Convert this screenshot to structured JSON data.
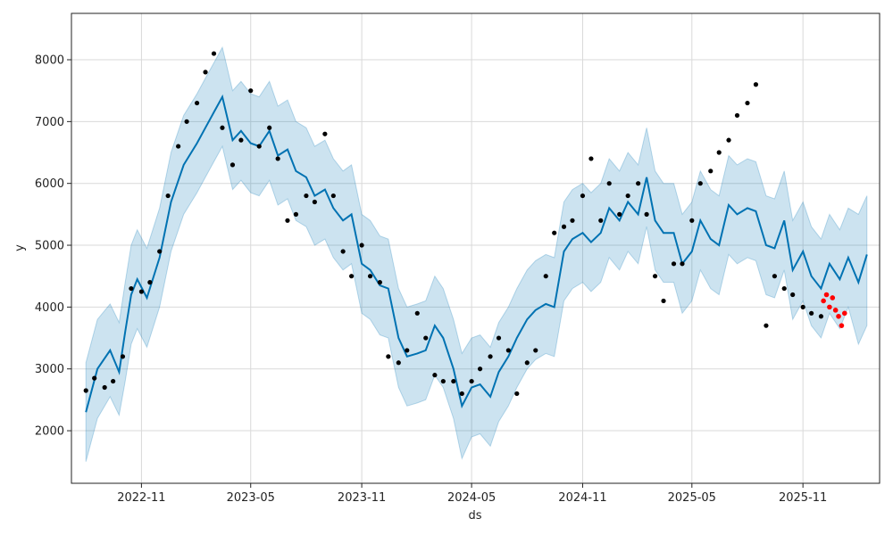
{
  "chart_data": {
    "type": "line",
    "title": "",
    "xlabel": "ds",
    "ylabel": "y",
    "x_range": [
      "2022-07-08",
      "2026-03-08"
    ],
    "ylim": [
      1150,
      8750
    ],
    "x_ticks": [
      {
        "date": "2022-11-01",
        "label": "2022-11"
      },
      {
        "date": "2023-05-01",
        "label": "2023-05"
      },
      {
        "date": "2023-11-01",
        "label": "2023-11"
      },
      {
        "date": "2024-05-01",
        "label": "2024-05"
      },
      {
        "date": "2024-11-01",
        "label": "2024-11"
      },
      {
        "date": "2025-05-01",
        "label": "2025-05"
      },
      {
        "date": "2025-11-01",
        "label": "2025-11"
      }
    ],
    "y_ticks": [
      2000,
      3000,
      4000,
      5000,
      6000,
      7000,
      8000
    ],
    "grid": true,
    "colors": {
      "forecast_line": "#0072B2",
      "interval_band": "#0072B2",
      "observed_points": "#000000",
      "test_points": "#FF0000"
    },
    "series": [
      {
        "kind": "forecast",
        "x": [
          "2022-08-01",
          "2022-08-20",
          "2022-09-10",
          "2022-09-25",
          "2022-10-05",
          "2022-10-15",
          "2022-10-25",
          "2022-11-10",
          "2022-12-01",
          "2022-12-20",
          "2023-01-10",
          "2023-02-01",
          "2023-02-15",
          "2023-03-01",
          "2023-03-15",
          "2023-04-01",
          "2023-04-15",
          "2023-05-01",
          "2023-05-15",
          "2023-06-01",
          "2023-06-15",
          "2023-07-01",
          "2023-07-15",
          "2023-08-01",
          "2023-08-15",
          "2023-09-01",
          "2023-09-15",
          "2023-10-01",
          "2023-10-15",
          "2023-11-01",
          "2023-11-15",
          "2023-12-01",
          "2023-12-15",
          "2024-01-01",
          "2024-01-15",
          "2024-02-01",
          "2024-02-15",
          "2024-03-01",
          "2024-03-15",
          "2024-04-01",
          "2024-04-15",
          "2024-05-01",
          "2024-05-15",
          "2024-06-01",
          "2024-06-15",
          "2024-07-01",
          "2024-07-15",
          "2024-08-01",
          "2024-08-15",
          "2024-09-01",
          "2024-09-15",
          "2024-10-01",
          "2024-10-15",
          "2024-11-01",
          "2024-11-15",
          "2024-12-01",
          "2024-12-15",
          "2025-01-01",
          "2025-01-15",
          "2025-02-01",
          "2025-02-15",
          "2025-03-01",
          "2025-03-15",
          "2025-04-01",
          "2025-04-15",
          "2025-05-01",
          "2025-05-15",
          "2025-06-01",
          "2025-06-15",
          "2025-07-01",
          "2025-07-15",
          "2025-08-01",
          "2025-08-15",
          "2025-09-01",
          "2025-09-15",
          "2025-10-01",
          "2025-10-15",
          "2025-11-01",
          "2025-11-15",
          "2025-12-01",
          "2025-12-15",
          "2026-01-01",
          "2026-01-15",
          "2026-02-01",
          "2026-02-15"
        ],
        "y": [
          2300,
          3000,
          3300,
          2950,
          3600,
          4200,
          4450,
          4150,
          4800,
          5700,
          6300,
          6650,
          6900,
          7150,
          7400,
          6700,
          6850,
          6650,
          6600,
          6850,
          6450,
          6550,
          6200,
          6100,
          5800,
          5900,
          5600,
          5400,
          5500,
          4700,
          4600,
          4350,
          4300,
          3500,
          3200,
          3250,
          3300,
          3700,
          3500,
          3000,
          2400,
          2700,
          2750,
          2550,
          2950,
          3200,
          3500,
          3800,
          3950,
          4050,
          4000,
          4900,
          5100,
          5200,
          5050,
          5200,
          5600,
          5400,
          5700,
          5500,
          6100,
          5400,
          5200,
          5200,
          4700,
          4900,
          5400,
          5100,
          5000,
          5650,
          5500,
          5600,
          5550,
          5000,
          4950,
          5400,
          4600,
          4900,
          4500,
          4300,
          4700,
          4450,
          4800,
          4400,
          4850
        ],
        "lower": [
          1500,
          2200,
          2550,
          2250,
          2800,
          3400,
          3650,
          3350,
          4000,
          4900,
          5500,
          5850,
          6100,
          6350,
          6600,
          5900,
          6050,
          5850,
          5800,
          6050,
          5650,
          5750,
          5400,
          5300,
          5000,
          5100,
          4800,
          4600,
          4700,
          3900,
          3800,
          3550,
          3500,
          2700,
          2400,
          2450,
          2500,
          2900,
          2700,
          2200,
          1550,
          1900,
          1950,
          1750,
          2150,
          2400,
          2700,
          3000,
          3150,
          3250,
          3200,
          4100,
          4300,
          4400,
          4250,
          4400,
          4800,
          4600,
          4900,
          4700,
          5300,
          4600,
          4400,
          4400,
          3900,
          4100,
          4600,
          4300,
          4200,
          4850,
          4700,
          4800,
          4750,
          4200,
          4150,
          4600,
          3800,
          4100,
          3700,
          3500,
          3900,
          3650,
          4000,
          3400,
          3700
        ],
        "upper": [
          3100,
          3800,
          4050,
          3750,
          4400,
          5000,
          5250,
          4950,
          5600,
          6500,
          7100,
          7450,
          7700,
          7950,
          8200,
          7500,
          7650,
          7450,
          7400,
          7650,
          7250,
          7350,
          7000,
          6900,
          6600,
          6700,
          6400,
          6200,
          6300,
          5500,
          5400,
          5150,
          5100,
          4300,
          4000,
          4050,
          4100,
          4500,
          4300,
          3800,
          3250,
          3500,
          3550,
          3350,
          3750,
          4000,
          4300,
          4600,
          4750,
          4850,
          4800,
          5700,
          5900,
          6000,
          5850,
          6000,
          6400,
          6200,
          6500,
          6300,
          6900,
          6200,
          6000,
          6000,
          5500,
          5700,
          6200,
          5900,
          5800,
          6450,
          6300,
          6400,
          6350,
          5800,
          5750,
          6200,
          5400,
          5700,
          5300,
          5100,
          5500,
          5250,
          5600,
          5500,
          5800
        ]
      },
      {
        "kind": "observed",
        "x": [
          "2022-08-01",
          "2022-08-15",
          "2022-09-01",
          "2022-09-15",
          "2022-10-01",
          "2022-10-15",
          "2022-11-01",
          "2022-11-15",
          "2022-12-01",
          "2022-12-15",
          "2023-01-01",
          "2023-01-15",
          "2023-02-01",
          "2023-02-15",
          "2023-03-01",
          "2023-03-15",
          "2023-04-01",
          "2023-04-15",
          "2023-05-01",
          "2023-05-15",
          "2023-06-01",
          "2023-06-15",
          "2023-07-01",
          "2023-07-15",
          "2023-08-01",
          "2023-08-15",
          "2023-09-01",
          "2023-09-15",
          "2023-10-01",
          "2023-10-15",
          "2023-11-01",
          "2023-11-15",
          "2023-12-01",
          "2023-12-15",
          "2024-01-01",
          "2024-01-15",
          "2024-02-01",
          "2024-02-15",
          "2024-03-01",
          "2024-03-15",
          "2024-04-01",
          "2024-04-15",
          "2024-05-01",
          "2024-05-15",
          "2024-06-01",
          "2024-06-15",
          "2024-07-01",
          "2024-07-15",
          "2024-08-01",
          "2024-08-15",
          "2024-09-01",
          "2024-09-15",
          "2024-10-01",
          "2024-10-15",
          "2024-11-01",
          "2024-11-15",
          "2024-12-01",
          "2024-12-15",
          "2025-01-01",
          "2025-01-15",
          "2025-02-01",
          "2025-02-15",
          "2025-03-01",
          "2025-03-15",
          "2025-04-01",
          "2025-04-15",
          "2025-05-01",
          "2025-05-15",
          "2025-06-01",
          "2025-06-15",
          "2025-07-01",
          "2025-07-15",
          "2025-08-01",
          "2025-08-15",
          "2025-09-01",
          "2025-09-15",
          "2025-10-01",
          "2025-10-15",
          "2025-11-01",
          "2025-11-15",
          "2025-12-01"
        ],
        "y": [
          2650,
          2850,
          2700,
          2800,
          3200,
          4300,
          4250,
          4400,
          4900,
          5800,
          6600,
          7000,
          7300,
          7800,
          8100,
          6900,
          6300,
          6700,
          7500,
          6600,
          6900,
          6400,
          5400,
          5500,
          5800,
          5700,
          6800,
          5800,
          4900,
          4500,
          5000,
          4500,
          4400,
          3200,
          3100,
          3300,
          3900,
          3500,
          2900,
          2800,
          2800,
          2600,
          2800,
          3000,
          3200,
          3500,
          3300,
          2600,
          3100,
          3300,
          4500,
          5200,
          5300,
          5400,
          5800,
          6400,
          5400,
          6000,
          5500,
          5800,
          6000,
          5500,
          4500,
          4100,
          4700,
          4700,
          5400,
          6000,
          6200,
          6500,
          6700,
          7100,
          7300,
          7600,
          3700,
          4500,
          4300,
          4200,
          4000,
          3900,
          3850
        ]
      },
      {
        "kind": "test",
        "x": [
          "2025-12-05",
          "2025-12-10",
          "2025-12-15",
          "2025-12-20",
          "2025-12-25",
          "2025-12-30",
          "2026-01-04",
          "2026-01-09"
        ],
        "y": [
          4100,
          4200,
          4000,
          4150,
          3950,
          3850,
          3700,
          3900
        ]
      }
    ]
  }
}
